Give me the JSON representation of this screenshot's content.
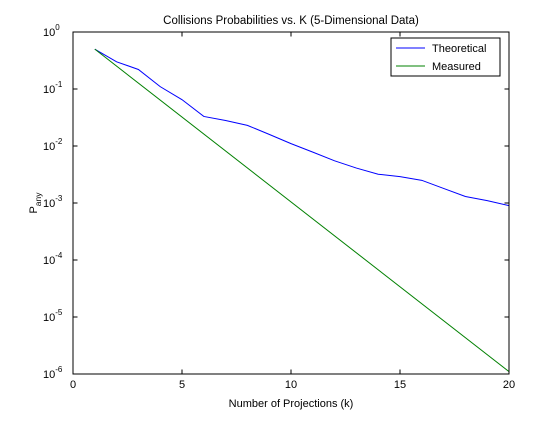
{
  "figure": {
    "background": "#ffffff"
  },
  "chart_data": {
    "type": "line",
    "title": "Collisions Probabilities vs. K (5-Dimensional Data)",
    "xlabel": "Number of Projections (k)",
    "ylabel": {
      "base": "P",
      "subscript": "any"
    },
    "xlim": [
      0,
      20
    ],
    "ylim": [
      1e-06,
      1
    ],
    "yscale": "log",
    "xticks": [
      0,
      5,
      10,
      15,
      20
    ],
    "xtick_labels": [
      "0",
      "5",
      "10",
      "15",
      "20"
    ],
    "yticks": [
      1e-06,
      1e-05,
      0.0001,
      0.001,
      0.01,
      0.1,
      1
    ],
    "ytick_labels": [
      {
        "base": "10",
        "exp": "-6"
      },
      {
        "base": "10",
        "exp": "-5"
      },
      {
        "base": "10",
        "exp": "-4"
      },
      {
        "base": "10",
        "exp": "-3"
      },
      {
        "base": "10",
        "exp": "-2"
      },
      {
        "base": "10",
        "exp": "-1"
      },
      {
        "base": "10",
        "exp": "0"
      }
    ],
    "grid": false,
    "legend_position": "top-right",
    "series": [
      {
        "name": "Theoretical",
        "color": "#0000ff",
        "x": [
          1,
          2,
          3,
          4,
          5,
          6,
          7,
          8,
          9,
          10,
          11,
          12,
          13,
          14,
          15,
          16,
          17,
          18,
          19,
          20
        ],
        "y": [
          0.5,
          0.3,
          0.22,
          0.11,
          0.065,
          0.033,
          0.028,
          0.023,
          0.016,
          0.011,
          0.0078,
          0.0055,
          0.0041,
          0.0032,
          0.0029,
          0.0025,
          0.0018,
          0.0013,
          0.0011,
          0.0009
        ]
      },
      {
        "name": "Measured",
        "color": "#008000",
        "x": [
          1,
          20
        ],
        "y": [
          0.5,
          1.1e-06
        ]
      }
    ]
  }
}
